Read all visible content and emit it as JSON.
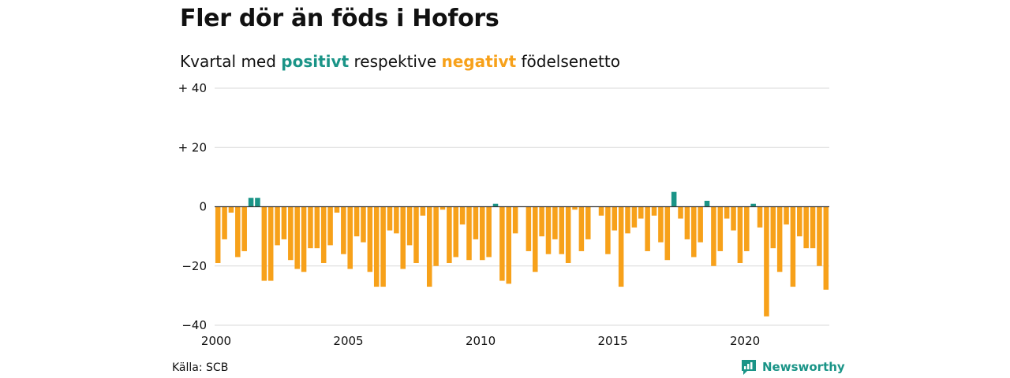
{
  "header": {
    "title": "Fler dör än föds i Hofors",
    "subtitle_pre": "Kvartal med",
    "subtitle_pos": "positivt",
    "subtitle_mid": "respektive",
    "subtitle_neg": "negativt",
    "subtitle_post": "födelsenetto"
  },
  "footer": {
    "source": "Källa: SCB",
    "brand": "Newsworthy"
  },
  "colors": {
    "positive": "#1a9487",
    "negative": "#f7a11a",
    "brand": "#1a9487",
    "grid": "#d9d9d9",
    "zero_line": "#333333"
  },
  "chart_data": {
    "type": "bar",
    "title": "Fler dör än föds i Hofors",
    "subtitle": "Kvartal med positivt respektive negativt födelsenetto",
    "xlabel": "",
    "ylabel": "",
    "ylim": [
      -40,
      40
    ],
    "yticks": [
      40,
      20,
      0,
      -20,
      -40
    ],
    "ytick_labels": [
      "+ 40",
      "+ 20",
      "0",
      "−20",
      "−40"
    ],
    "xticks": [
      2000,
      2005,
      2010,
      2015,
      2020
    ],
    "x_start_year": 2000,
    "periods_per_year": 4,
    "grid": true,
    "values": [
      -19,
      -11,
      -2,
      -17,
      -15,
      3,
      3,
      -25,
      -25,
      -13,
      -11,
      -18,
      -21,
      -22,
      -14,
      -14,
      -19,
      -13,
      -2,
      -16,
      -21,
      -10,
      -12,
      -22,
      -27,
      -27,
      -8,
      -9,
      -21,
      -13,
      -19,
      -3,
      -27,
      -20,
      -1,
      -19,
      -17,
      -6,
      -18,
      -11,
      -18,
      -17,
      1,
      -25,
      -26,
      -9,
      0,
      -15,
      -22,
      -10,
      -16,
      -11,
      -16,
      -19,
      -1,
      -15,
      -11,
      0,
      -3,
      -16,
      -8,
      -27,
      -9,
      -7,
      -4,
      -15,
      -3,
      -12,
      -18,
      5,
      -4,
      -11,
      -17,
      -12,
      2,
      -20,
      -15,
      -4,
      -8,
      -19,
      -15,
      1,
      -7,
      -37,
      -14,
      -22,
      -6,
      -27,
      -10,
      -14,
      -14,
      -20,
      -28
    ]
  }
}
